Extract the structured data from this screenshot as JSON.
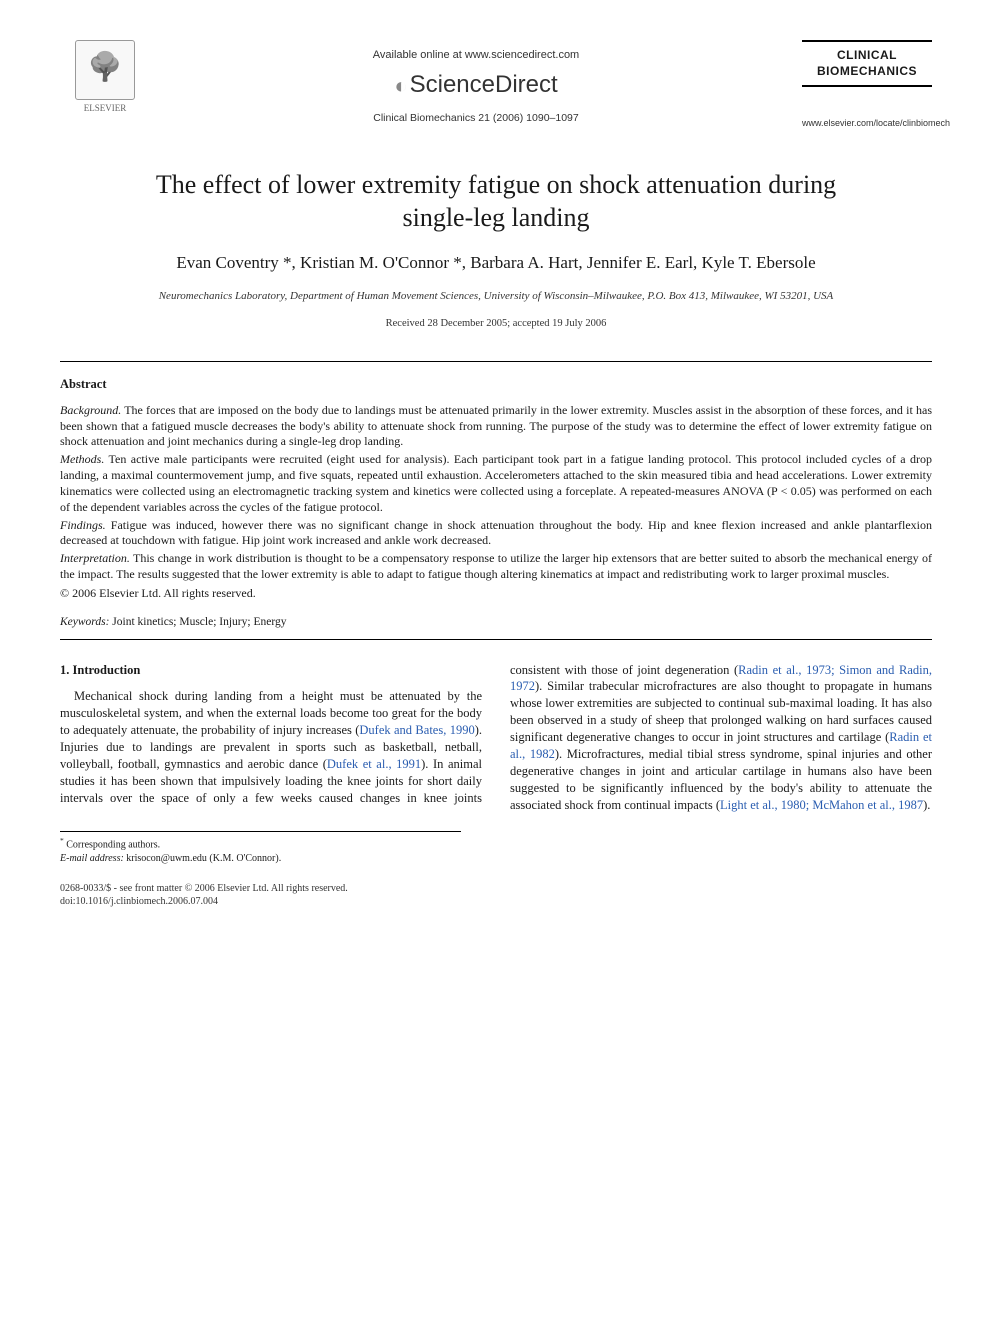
{
  "header": {
    "publisher_logo_label": "ELSEVIER",
    "available_online": "Available online at www.sciencedirect.com",
    "sciencedirect": "ScienceDirect",
    "journal_ref": "Clinical Biomechanics 21 (2006) 1090–1097",
    "journal_name_line1": "CLINICAL",
    "journal_name_line2": "BIOMECHANICS",
    "journal_url": "www.elsevier.com/locate/clinbiomech"
  },
  "title": "The effect of lower extremity fatigue on shock attenuation during single-leg landing",
  "authors": "Evan Coventry *, Kristian M. O'Connor *, Barbara A. Hart, Jennifer E. Earl, Kyle T. Ebersole",
  "affiliation": "Neuromechanics Laboratory, Department of Human Movement Sciences, University of Wisconsin–Milwaukee, P.O. Box 413, Milwaukee, WI 53201, USA",
  "dates": "Received 28 December 2005; accepted 19 July 2006",
  "abstract": {
    "heading": "Abstract",
    "background_label": "Background.",
    "background": " The forces that are imposed on the body due to landings must be attenuated primarily in the lower extremity. Muscles assist in the absorption of these forces, and it has been shown that a fatigued muscle decreases the body's ability to attenuate shock from running. The purpose of the study was to determine the effect of lower extremity fatigue on shock attenuation and joint mechanics during a single-leg drop landing.",
    "methods_label": "Methods.",
    "methods": " Ten active male participants were recruited (eight used for analysis). Each participant took part in a fatigue landing protocol. This protocol included cycles of a drop landing, a maximal countermovement jump, and five squats, repeated until exhaustion. Accelerometers attached to the skin measured tibia and head accelerations. Lower extremity kinematics were collected using an electromagnetic tracking system and kinetics were collected using a forceplate. A repeated-measures ANOVA (P < 0.05) was performed on each of the dependent variables across the cycles of the fatigue protocol.",
    "findings_label": "Findings.",
    "findings": " Fatigue was induced, however there was no significant change in shock attenuation throughout the body. Hip and knee flexion increased and ankle plantarflexion decreased at touchdown with fatigue. Hip joint work increased and ankle work decreased.",
    "interpretation_label": "Interpretation.",
    "interpretation": " This change in work distribution is thought to be a compensatory response to utilize the larger hip extensors that are better suited to absorb the mechanical energy of the impact. The results suggested that the lower extremity is able to adapt to fatigue though altering kinematics at impact and redistributing work to larger proximal muscles.",
    "copyright": "© 2006 Elsevier Ltd. All rights reserved."
  },
  "keywords": {
    "label": "Keywords:",
    "text": " Joint kinetics; Muscle; Injury; Energy"
  },
  "intro": {
    "heading": "1. Introduction",
    "p1_a": "Mechanical shock during landing from a height must be attenuated by the musculoskeletal system, and when the external loads become too great for the body to adequately attenuate, the probability of injury increases (",
    "p1_c1": "Dufek and Bates, 1990",
    "p1_b": "). Injuries due to landings are prevalent in sports such as basketball, netball, volleyball, football, gymnastics and aerobic dance (",
    "p1_c2": "Dufek et al., 1991",
    "p1_c": "). In animal studies it has been shown that impulsively loading the knee joints for short daily intervals over the space of only a few",
    "p2_a": "weeks caused changes in knee joints consistent with those of joint degeneration (",
    "p2_c1": "Radin et al., 1973; Simon and Radin, 1972",
    "p2_b": "). Similar trabecular microfractures are also thought to propagate in humans whose lower extremities are subjected to continual sub-maximal loading. It has also been observed in a study of sheep that prolonged walking on hard surfaces caused significant degenerative changes to occur in joint structures and cartilage (",
    "p2_c2": "Radin et al., 1982",
    "p2_c": "). Microfractures, medial tibial stress syndrome, spinal injuries and other degenerative changes in joint and articular cartilage in humans also have been suggested to be significantly influenced by the body's ability to attenuate the associated shock from continual impacts (",
    "p2_c3": "Light et al., 1980; McMahon et al., 1987",
    "p2_d": ")."
  },
  "footnote": {
    "corresponding": "Corresponding authors.",
    "email_label": "E-mail address:",
    "email": " krisocon@uwm.edu ",
    "email_who": "(K.M. O'Connor)."
  },
  "footer": {
    "left_line1": "0268-0033/$ - see front matter © 2006 Elsevier Ltd. All rights reserved.",
    "left_line2": "doi:10.1016/j.clinbiomech.2006.07.004"
  },
  "colors": {
    "text": "#1a1a1a",
    "citation": "#2a5db0",
    "background": "#ffffff",
    "rule": "#000000"
  }
}
